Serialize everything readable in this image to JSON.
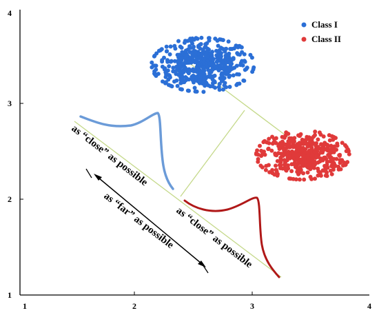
{
  "chart_data": {
    "type": "scatter",
    "title": "",
    "xlabel": "",
    "ylabel": "",
    "xlim": [
      1,
      4
    ],
    "ylim": [
      1,
      4
    ],
    "x_ticks": [
      "1",
      "2",
      "3",
      "4"
    ],
    "y_ticks": [
      "1",
      "2",
      "3",
      "4"
    ],
    "grid": false,
    "legend_position": "top-right",
    "series": [
      {
        "name": "Class I",
        "color": "#2b6fd6",
        "center": [
          2.55,
          3.42
        ],
        "spread": [
          0.33,
          0.21
        ],
        "n": 500
      },
      {
        "name": "Class II",
        "color": "#e03a3a",
        "center": [
          3.42,
          2.47
        ],
        "spread": [
          0.3,
          0.19
        ],
        "n": 450
      }
    ],
    "annotations": {
      "close_upper": "as “close” as possible",
      "far": "as “far” as possible",
      "close_lower": "as “close” as possible"
    },
    "colors": {
      "projection_line": "#c5d98a",
      "class1_curve": "#6b9bd8",
      "class2_curve": "#b01818"
    }
  }
}
